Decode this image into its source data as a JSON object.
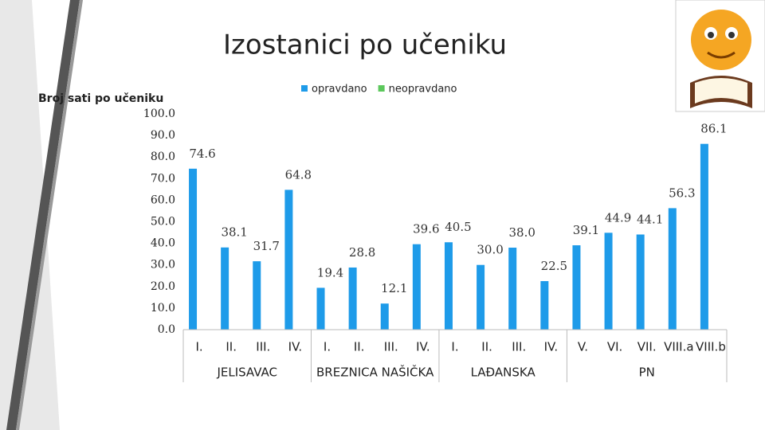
{
  "chart_data": {
    "type": "bar",
    "title": "Izostanici po učeniku",
    "y_label": "Broj sati po učeniku",
    "groups": [
      {
        "label": "JELISAVAC",
        "categories": [
          "I.",
          "II.",
          "III.",
          "IV."
        ]
      },
      {
        "label": "BREZNICA NAŠIČKA",
        "categories": [
          "I.",
          "II.",
          "III.",
          "IV."
        ]
      },
      {
        "label": "LAĐANSKA",
        "categories": [
          "I.",
          "II.",
          "III.",
          "IV."
        ]
      },
      {
        "label": "PN",
        "categories": [
          "V.",
          "VI.",
          "VII.",
          "VIII.a",
          "VIII.b"
        ]
      }
    ],
    "series": [
      {
        "name": "opravdano",
        "color": "#1e9be9",
        "values": [
          74.6,
          38.1,
          31.7,
          64.8,
          19.4,
          28.8,
          12.1,
          39.6,
          40.5,
          30.0,
          38.0,
          22.5,
          39.1,
          44.9,
          44.1,
          56.3,
          86.1
        ],
        "value_labels": [
          "74.6",
          "38.1",
          "31.7",
          "64.8",
          "19.4",
          "28.8",
          "12.1",
          "39.6",
          "40.5",
          "30.0",
          "38.0",
          "22.5",
          "39.1",
          "44.9",
          "44.1",
          "56.3",
          "86.1"
        ]
      },
      {
        "name": "neopravdano",
        "color": "#5cc85c",
        "values": [
          null,
          null,
          null,
          null,
          null,
          null,
          null,
          null,
          null,
          null,
          null,
          null,
          null,
          null,
          null,
          null,
          null
        ]
      }
    ],
    "ylim": [
      0,
      100
    ],
    "yticks": [
      {
        "value": 0,
        "label": "0.0"
      },
      {
        "value": 10,
        "label": "10.0"
      },
      {
        "value": 20,
        "label": "20.0"
      },
      {
        "value": 30,
        "label": "30.0"
      },
      {
        "value": 40,
        "label": "40.0"
      },
      {
        "value": 50,
        "label": "50.0"
      },
      {
        "value": 60,
        "label": "60.0"
      },
      {
        "value": 70,
        "label": "70.0"
      },
      {
        "value": 80,
        "label": "80.0"
      },
      {
        "value": 90,
        "label": "90.0"
      },
      {
        "value": 100,
        "label": "100.0"
      }
    ],
    "grid": false
  }
}
